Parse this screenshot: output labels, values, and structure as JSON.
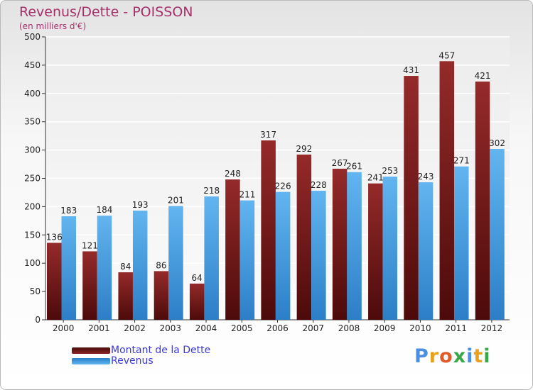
{
  "title": "Revenus/Dette - POISSON",
  "subtitle": "(en milliers d'€)",
  "logo_text": "Proxiti",
  "colors": {
    "title": "#a6306b",
    "legend_text": "#3b39d9",
    "dette_bar": "#7a1818",
    "revenus_bar": "#4aa3e8"
  },
  "legend": [
    {
      "label": "Montant de la Dette",
      "color": "#7a1818"
    },
    {
      "label": "Revenus",
      "color": "#4aa3e8"
    }
  ],
  "chart_data": {
    "type": "bar",
    "categories": [
      "2000",
      "2001",
      "2002",
      "2003",
      "2004",
      "2005",
      "2006",
      "2007",
      "2008",
      "2009",
      "2010",
      "2011",
      "2012"
    ],
    "series": [
      {
        "name": "Montant de la Dette",
        "values": [
          136,
          121,
          84,
          86,
          64,
          248,
          317,
          292,
          267,
          241,
          431,
          457,
          421
        ]
      },
      {
        "name": "Revenus",
        "values": [
          183,
          184,
          193,
          201,
          218,
          211,
          226,
          228,
          261,
          253,
          243,
          271,
          302
        ]
      }
    ],
    "yticks": [
      0,
      50,
      100,
      150,
      200,
      250,
      300,
      350,
      400,
      450,
      500
    ],
    "ylim": [
      0,
      500
    ],
    "grid": true,
    "legend_position": "bottom-left"
  }
}
